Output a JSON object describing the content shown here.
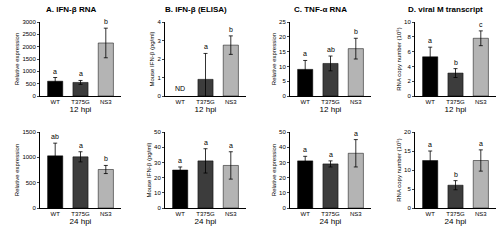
{
  "chart_data": [
    {
      "type": "bar",
      "title": "A. IFN-β RNA",
      "x_label": "12 hpi",
      "y_label": "Relative expression",
      "categories": [
        "WT",
        "T375G",
        "NS3"
      ],
      "values": [
        600,
        550,
        2150
      ],
      "errors": [
        150,
        80,
        600
      ],
      "colors": [
        "#000000",
        "#3c3c3c",
        "#b4b4b4"
      ],
      "letters": [
        "a",
        "a",
        "b"
      ],
      "ylim": [
        0,
        3000
      ],
      "yticks": [
        0,
        500,
        1000,
        1500,
        2000,
        2500,
        3000
      ]
    },
    {
      "type": "bar",
      "title": "B. IFN-β (ELISA)",
      "x_label": "12 hpi",
      "y_label": "Mouse IFN-β (pg/ml)",
      "categories": [
        "WT",
        "T375G",
        "NS3"
      ],
      "values": [
        null,
        0.9,
        2.75
      ],
      "errors": [
        null,
        1.4,
        0.5
      ],
      "colors": [
        "#000000",
        "#3c3c3c",
        "#b4b4b4"
      ],
      "letters": [
        null,
        "a",
        "b"
      ],
      "annotations": [
        {
          "x": "WT",
          "text": "ND"
        }
      ],
      "ylim": [
        0,
        4
      ],
      "yticks": [
        0,
        1,
        2,
        3,
        4
      ]
    },
    {
      "type": "bar",
      "title": "C. TNF-α RNA",
      "x_label": "12 hpi",
      "y_label": "Relative expression",
      "categories": [
        "WT",
        "T375G",
        "NS3"
      ],
      "values": [
        9,
        11,
        16
      ],
      "errors": [
        3,
        2.5,
        3.5
      ],
      "colors": [
        "#000000",
        "#3c3c3c",
        "#b4b4b4"
      ],
      "letters": [
        "a",
        "ab",
        "b"
      ],
      "ylim": [
        0,
        25
      ],
      "yticks": [
        0,
        5,
        10,
        15,
        20,
        25
      ]
    },
    {
      "type": "bar",
      "title": "D. viral M transcript",
      "x_label": "12 hpi",
      "y_label": "RNA copy number (10⁵)",
      "categories": [
        "WT",
        "T375G",
        "NS3"
      ],
      "values": [
        5.3,
        3.1,
        7.8
      ],
      "errors": [
        1.3,
        0.6,
        1
      ],
      "colors": [
        "#000000",
        "#3c3c3c",
        "#b4b4b4"
      ],
      "letters": [
        "a",
        "b",
        "c"
      ],
      "ylim": [
        0,
        10
      ],
      "yticks": [
        0,
        2,
        4,
        6,
        8,
        10
      ]
    },
    {
      "type": "bar",
      "x_label": "24 hpi",
      "y_label": "Relative expression",
      "categories": [
        "WT",
        "T375G",
        "NS3"
      ],
      "values": [
        1030,
        1010,
        760
      ],
      "errors": [
        250,
        100,
        80
      ],
      "colors": [
        "#000000",
        "#3c3c3c",
        "#b4b4b4"
      ],
      "letters": [
        "ab",
        "a",
        "b"
      ],
      "ylim": [
        0,
        1500
      ],
      "yticks": [
        0,
        500,
        1000,
        1500
      ]
    },
    {
      "type": "bar",
      "x_label": "24 hpi",
      "y_label": "Mouse IFN-β (pg/ml)",
      "categories": [
        "WT",
        "T375G",
        "NS3"
      ],
      "values": [
        25,
        31,
        28
      ],
      "errors": [
        2,
        8,
        9
      ],
      "colors": [
        "#000000",
        "#3c3c3c",
        "#b4b4b4"
      ],
      "letters": [
        "a",
        "a",
        "a"
      ],
      "ylim": [
        0,
        50
      ],
      "yticks": [
        0,
        10,
        20,
        30,
        40,
        50
      ]
    },
    {
      "type": "bar",
      "x_label": "24 hpi",
      "y_label": "Relative expression",
      "categories": [
        "WT",
        "T375G",
        "NS3"
      ],
      "values": [
        31,
        29,
        36
      ],
      "errors": [
        3,
        2,
        9
      ],
      "colors": [
        "#000000",
        "#3c3c3c",
        "#b4b4b4"
      ],
      "letters": [
        "a",
        "a",
        "a"
      ],
      "ylim": [
        0,
        50
      ],
      "yticks": [
        0,
        10,
        20,
        30,
        40,
        50
      ]
    },
    {
      "type": "bar",
      "x_label": "24 hpi",
      "y_label": "RNA copy number (10⁵)",
      "categories": [
        "WT",
        "T375G",
        "NS3"
      ],
      "values": [
        12.5,
        6,
        12.5
      ],
      "errors": [
        2.5,
        1.2,
        2.8
      ],
      "colors": [
        "#000000",
        "#3c3c3c",
        "#b4b4b4"
      ],
      "letters": [
        "a",
        "b",
        "a"
      ],
      "ylim": [
        0,
        20
      ],
      "yticks": [
        0,
        5,
        10,
        15,
        20
      ]
    }
  ]
}
